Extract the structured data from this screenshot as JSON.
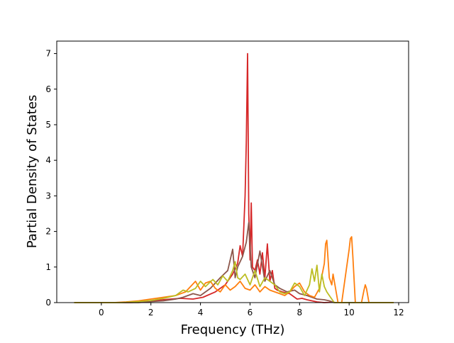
{
  "chart_data": {
    "type": "line",
    "title": "",
    "xlabel": "Frequency (THz)",
    "ylabel": "Partial Density of States",
    "xlim": [
      -1.8,
      12.4
    ],
    "ylim": [
      0,
      7.35
    ],
    "xticks": [
      0,
      2,
      4,
      6,
      8,
      10,
      12
    ],
    "yticks": [
      0,
      1,
      2,
      3,
      4,
      5,
      6,
      7
    ],
    "grid": false,
    "legend": "none",
    "series": [
      {
        "color": "#d62728",
        "x": [
          -1.1,
          1.2,
          1.9,
          2.3,
          2.8,
          3.2,
          3.7,
          4.1,
          4.6,
          5.0,
          5.3,
          5.5,
          5.6,
          5.7,
          5.8,
          5.85,
          5.9,
          5.95,
          6.0,
          6.05,
          6.1,
          6.2,
          6.3,
          6.4,
          6.5,
          6.6,
          6.7,
          6.8,
          6.9,
          7.0,
          7.1,
          7.3,
          7.6,
          7.9,
          8.1,
          8.3,
          8.5,
          8.7,
          9.0,
          9.3,
          9.5,
          11.8
        ],
        "y": [
          0,
          0,
          0.05,
          0.07,
          0.1,
          0.12,
          0.1,
          0.15,
          0.3,
          0.5,
          0.8,
          1.1,
          1.6,
          1.3,
          3.0,
          4.5,
          7.0,
          2.5,
          1.2,
          2.8,
          1.0,
          0.9,
          1.2,
          0.8,
          1.4,
          0.7,
          1.65,
          0.6,
          0.9,
          0.4,
          0.35,
          0.3,
          0.25,
          0.1,
          0.12,
          0.08,
          0.05,
          0.02,
          0,
          0.01,
          0,
          0
        ]
      },
      {
        "color": "#8c564b",
        "x": [
          -1.1,
          1.5,
          2.0,
          2.5,
          3.0,
          3.3,
          3.7,
          4.0,
          4.4,
          4.8,
          5.1,
          5.3,
          5.4,
          5.5,
          5.7,
          5.85,
          5.95,
          6.05,
          6.2,
          6.4,
          6.6,
          6.8,
          7.0,
          7.2,
          7.5,
          7.8,
          8.0,
          8.3,
          8.5,
          8.7,
          9.0,
          9.2,
          9.4,
          11.8
        ],
        "y": [
          0,
          0,
          0.03,
          0.05,
          0.1,
          0.15,
          0.25,
          0.2,
          0.4,
          0.7,
          0.9,
          1.5,
          0.7,
          1.0,
          1.3,
          1.7,
          2.25,
          1.0,
          0.7,
          1.45,
          0.6,
          0.9,
          0.5,
          0.4,
          0.3,
          0.35,
          0.25,
          0.2,
          0.15,
          0.1,
          0.08,
          0.05,
          0,
          0
        ]
      },
      {
        "color": "#ff7f0e",
        "x": [
          -1.1,
          0.5,
          1.0,
          1.5,
          2.0,
          2.5,
          3.0,
          3.4,
          3.6,
          3.8,
          4.0,
          4.2,
          4.4,
          4.6,
          4.8,
          5.0,
          5.2,
          5.4,
          5.6,
          5.8,
          6.0,
          6.2,
          6.4,
          6.6,
          6.8,
          7.0,
          7.2,
          7.4,
          7.6,
          7.8,
          8.0,
          8.2,
          8.4,
          8.6,
          8.8,
          9.0,
          9.05,
          9.1,
          9.2,
          9.3,
          9.35,
          9.45,
          9.55,
          9.7,
          10.0,
          10.05,
          10.1,
          10.15,
          10.25,
          10.35,
          10.5,
          10.6,
          10.65,
          10.7,
          10.8,
          11.8
        ],
        "y": [
          0,
          0,
          0.02,
          0.05,
          0.1,
          0.15,
          0.2,
          0.3,
          0.45,
          0.6,
          0.35,
          0.55,
          0.6,
          0.4,
          0.3,
          0.5,
          0.35,
          0.45,
          0.6,
          0.4,
          0.35,
          0.5,
          0.3,
          0.45,
          0.35,
          0.3,
          0.25,
          0.2,
          0.3,
          0.45,
          0.55,
          0.3,
          0.2,
          0.15,
          0.4,
          1.1,
          1.65,
          1.75,
          0.7,
          0.5,
          0.8,
          0.4,
          0,
          0,
          1.5,
          1.8,
          1.85,
          1.3,
          0,
          0,
          0,
          0.35,
          0.5,
          0.4,
          0,
          0
        ]
      },
      {
        "color": "#bcbd22",
        "x": [
          -1.1,
          0.8,
          1.5,
          2.0,
          2.5,
          3.0,
          3.3,
          3.5,
          3.8,
          4.0,
          4.2,
          4.5,
          4.7,
          4.9,
          5.1,
          5.3,
          5.4,
          5.5,
          5.6,
          5.8,
          6.0,
          6.2,
          6.4,
          6.6,
          6.8,
          7.0,
          7.2,
          7.4,
          7.6,
          7.8,
          8.0,
          8.2,
          8.4,
          8.5,
          8.6,
          8.7,
          8.8,
          8.9,
          9.0,
          9.1,
          9.2,
          9.3,
          9.4,
          11.8
        ],
        "y": [
          0,
          0,
          0.03,
          0.06,
          0.12,
          0.2,
          0.35,
          0.3,
          0.4,
          0.6,
          0.45,
          0.65,
          0.5,
          0.75,
          0.6,
          0.9,
          1.15,
          0.7,
          0.65,
          0.8,
          0.5,
          0.9,
          0.45,
          0.7,
          0.6,
          0.5,
          0.3,
          0.25,
          0.3,
          0.55,
          0.45,
          0.2,
          0.5,
          0.95,
          0.6,
          1.05,
          0.3,
          0.8,
          0.45,
          0.3,
          0.2,
          0.1,
          0,
          0
        ]
      }
    ]
  }
}
